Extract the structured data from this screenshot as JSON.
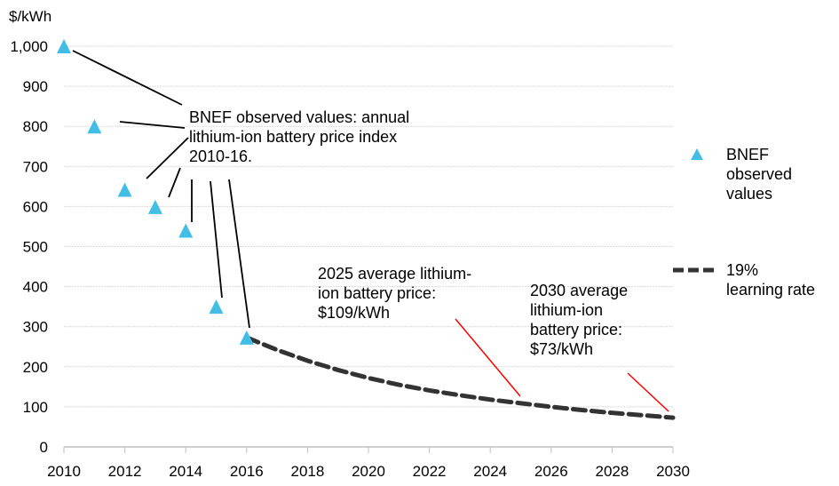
{
  "chart_data": {
    "type": "scatter",
    "title": "",
    "ylabel": "$/kWh",
    "xlabel": "",
    "xlim": [
      2010,
      2030
    ],
    "ylim": [
      0,
      1000
    ],
    "x_ticks": [
      "2010",
      "2012",
      "2014",
      "2016",
      "2018",
      "2020",
      "2022",
      "2024",
      "2026",
      "2028",
      "2030"
    ],
    "y_ticks": [
      "0",
      "100",
      "200",
      "300",
      "400",
      "500",
      "600",
      "700",
      "800",
      "900",
      "1,000"
    ],
    "grid": "horizontal",
    "legend_position": "right",
    "series": [
      {
        "name": "BNEF observed values",
        "type": "scatter",
        "marker": "triangle",
        "color": "#41bde6",
        "x": [
          2010,
          2011,
          2012,
          2013,
          2014,
          2015,
          2016
        ],
        "values": [
          1000,
          800,
          642,
          599,
          540,
          350,
          273
        ]
      },
      {
        "name": "19% learning rate",
        "type": "line",
        "style": "dashed",
        "color": "#333333",
        "x": [
          2016,
          2017,
          2018,
          2019,
          2020,
          2021,
          2022,
          2023,
          2024,
          2025,
          2026,
          2027,
          2028,
          2029,
          2030
        ],
        "values": [
          273,
          242,
          215,
          192,
          172,
          155,
          141,
          129,
          118,
          109,
          100,
          92,
          85,
          79,
          73
        ]
      }
    ],
    "legend": [
      {
        "label_lines": [
          "BNEF",
          "observed",
          "values"
        ]
      },
      {
        "label_lines": [
          "19%",
          "learning rate"
        ]
      }
    ],
    "annotations": {
      "observed": {
        "lines": [
          "BNEF observed values: annual",
          "lithium-ion battery price index",
          "2010-16."
        ]
      },
      "y2025": {
        "lines": [
          "2025 average lithium-",
          "ion battery price:"
        ],
        "highlight": "$109/kWh",
        "highlight_color": "#ff0000"
      },
      "y2030": {
        "lines": [
          "2030 average",
          "lithium-ion",
          "battery price:"
        ],
        "highlight": "$73/kWh",
        "highlight_color": "#ff0000"
      }
    }
  }
}
